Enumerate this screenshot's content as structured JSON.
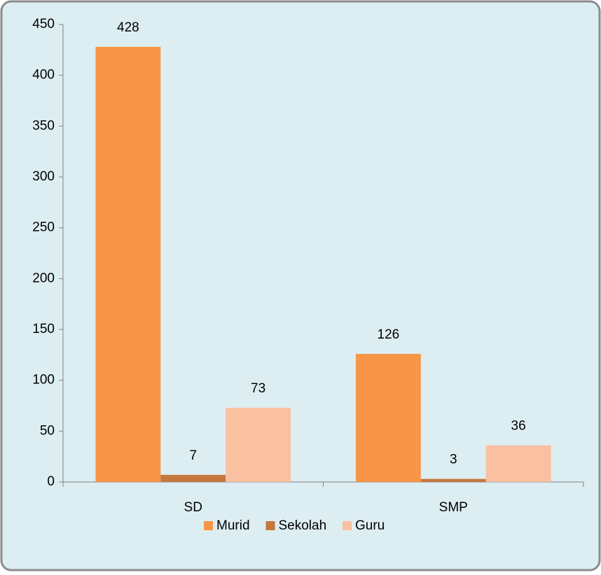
{
  "chart_data": {
    "type": "bar",
    "categories": [
      "SD",
      "SMP"
    ],
    "series": [
      {
        "name": "Murid",
        "color": "#f79646",
        "values": [
          428,
          126
        ]
      },
      {
        "name": "Sekolah",
        "color": "#c5773d",
        "values": [
          7,
          3
        ]
      },
      {
        "name": "Guru",
        "color": "#fac0a1",
        "values": [
          73,
          36
        ]
      }
    ],
    "ylim": [
      0,
      450
    ],
    "yticks": [
      0,
      50,
      100,
      150,
      200,
      250,
      300,
      350,
      400,
      450
    ],
    "legend": "bottom"
  }
}
